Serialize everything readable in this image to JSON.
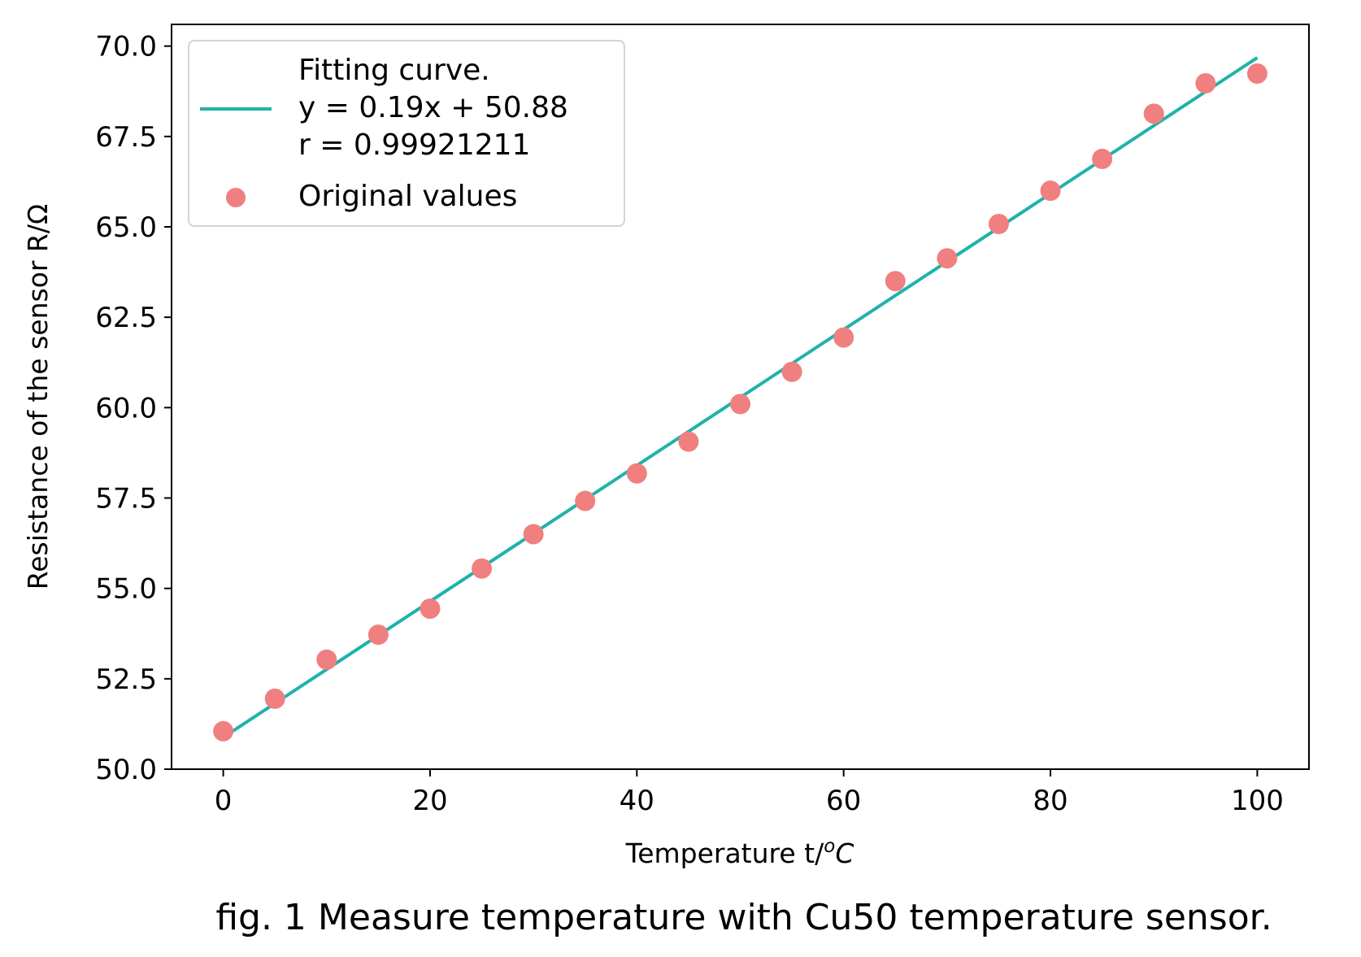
{
  "chart_data": {
    "type": "scatter",
    "xlabel": "Temperature t/",
    "xlabel_unit_sup": "o",
    "xlabel_unit": "C",
    "ylabel": "Resistance of the sensor R/Ω",
    "xlim": [
      -5,
      105
    ],
    "ylim": [
      50.0,
      70.6
    ],
    "x_ticks": [
      0,
      20,
      40,
      60,
      80,
      100
    ],
    "y_ticks": [
      50.0,
      52.5,
      55.0,
      57.5,
      60.0,
      62.5,
      65.0,
      67.5,
      70.0
    ],
    "x_tick_labels": [
      "0",
      "20",
      "40",
      "60",
      "80",
      "100"
    ],
    "y_tick_labels": [
      "50.0",
      "52.5",
      "55.0",
      "57.5",
      "60.0",
      "62.5",
      "65.0",
      "67.5",
      "70.0"
    ],
    "grid": false,
    "legend_position": "upper-left",
    "series": [
      {
        "name": "Original values",
        "kind": "scatter",
        "color": "#F08080",
        "x": [
          0,
          5,
          10,
          15,
          20,
          25,
          30,
          35,
          40,
          45,
          50,
          55,
          60,
          65,
          70,
          75,
          80,
          85,
          90,
          95,
          100
        ],
        "y": [
          51.05,
          51.95,
          53.03,
          53.72,
          54.44,
          55.55,
          56.5,
          57.42,
          58.18,
          59.06,
          60.1,
          60.99,
          61.94,
          63.5,
          64.13,
          65.08,
          66.0,
          66.88,
          68.13,
          68.97,
          69.24
        ]
      },
      {
        "name": "Fitting curve.",
        "name_lines": [
          "Fitting curve.",
          "y = 0.19x + 50.88",
          "r = 0.99921211"
        ],
        "kind": "line",
        "color": "#20B2AA",
        "x": [
          0,
          100
        ],
        "y": [
          50.88,
          69.68
        ]
      }
    ]
  },
  "caption": "fig. 1 Measure temperature with Cu50 temperature sensor."
}
